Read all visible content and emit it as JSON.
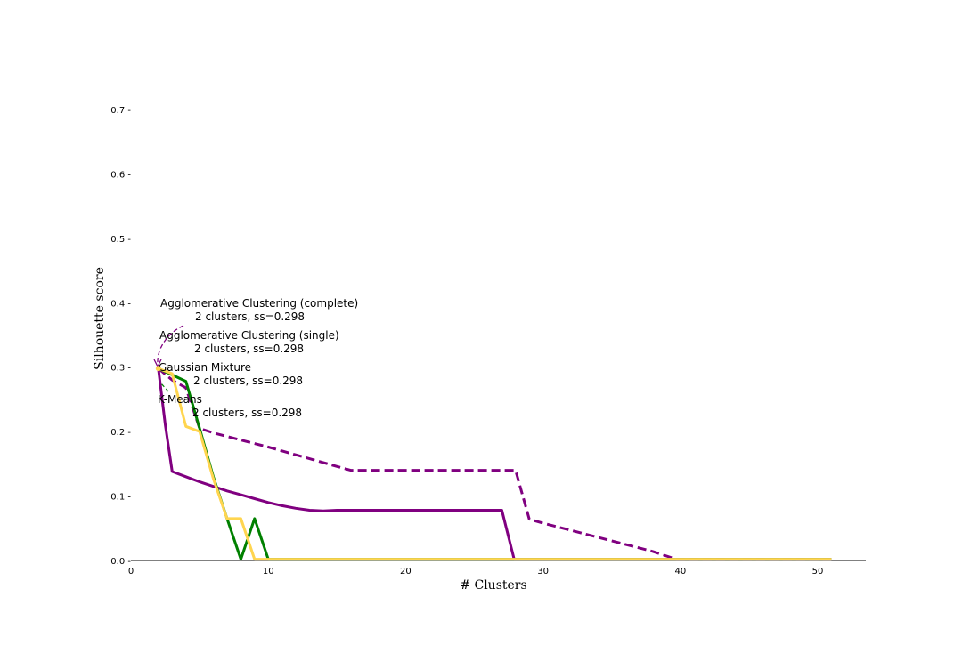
{
  "chart_data": {
    "type": "line",
    "title": "",
    "xlabel": "# Clusters",
    "ylabel": "Silhouette score",
    "xlim": [
      0,
      53.5
    ],
    "ylim": [
      0,
      0.7
    ],
    "x_ticks": [
      0,
      10,
      20,
      30,
      40,
      50
    ],
    "x_tick_labels": [
      "0",
      "10",
      "20",
      "30",
      "40",
      "50"
    ],
    "y_ticks": [
      0.0,
      0.1,
      0.2,
      0.3,
      0.4,
      0.5,
      0.6,
      0.7
    ],
    "y_tick_labels": [
      "0.0 -",
      "0.1 -",
      "0.2 -",
      "0.3 -",
      "0.4 -",
      "0.5 -",
      "0.6 -",
      "0.7 -"
    ],
    "grid": false,
    "series": [
      {
        "color": "#800080",
        "style": "dashed",
        "points": [
          [
            2,
            0.298
          ],
          [
            3,
            0.28
          ],
          [
            4,
            0.268
          ],
          [
            5,
            0.205
          ],
          [
            6,
            0.198
          ],
          [
            8,
            0.187
          ],
          [
            10,
            0.176
          ],
          [
            12,
            0.164
          ],
          [
            14,
            0.152
          ],
          [
            15,
            0.146
          ],
          [
            16,
            0.14
          ],
          [
            20,
            0.14
          ],
          [
            25,
            0.14
          ],
          [
            28,
            0.14
          ],
          [
            29,
            0.064
          ],
          [
            30,
            0.058
          ],
          [
            32,
            0.047
          ],
          [
            34,
            0.036
          ],
          [
            36,
            0.025
          ],
          [
            38,
            0.014
          ],
          [
            39.7,
            0.002
          ],
          [
            40,
            0.002
          ],
          [
            51,
            0.002
          ]
        ]
      },
      {
        "color": "#800080",
        "style": "solid",
        "points": [
          [
            2,
            0.298
          ],
          [
            2.5,
            0.21
          ],
          [
            3,
            0.138
          ],
          [
            4,
            0.13
          ],
          [
            5,
            0.122
          ],
          [
            6,
            0.115
          ],
          [
            7,
            0.108
          ],
          [
            8,
            0.102
          ],
          [
            9,
            0.096
          ],
          [
            10,
            0.09
          ],
          [
            11,
            0.085
          ],
          [
            12,
            0.081
          ],
          [
            13,
            0.078
          ],
          [
            14,
            0.077
          ],
          [
            15,
            0.078
          ],
          [
            20,
            0.078
          ],
          [
            25,
            0.078
          ],
          [
            27,
            0.078
          ],
          [
            27.9,
            0.002
          ],
          [
            30,
            0.002
          ],
          [
            40,
            0.002
          ],
          [
            51,
            0.002
          ]
        ]
      },
      {
        "color": "#008000",
        "style": "solid",
        "points": [
          [
            2,
            0.298
          ],
          [
            3,
            0.288
          ],
          [
            4,
            0.278
          ],
          [
            5,
            0.205
          ],
          [
            6,
            0.13
          ],
          [
            7,
            0.065
          ],
          [
            8,
            0.002
          ],
          [
            9,
            0.065
          ],
          [
            10,
            0.002
          ],
          [
            20,
            0.002
          ],
          [
            30,
            0.002
          ],
          [
            40,
            0.002
          ],
          [
            51,
            0.002
          ]
        ]
      },
      {
        "color": "#FFD54F",
        "style": "solid",
        "points": [
          [
            2,
            0.298
          ],
          [
            3,
            0.29
          ],
          [
            4,
            0.208
          ],
          [
            5,
            0.2
          ],
          [
            6,
            0.127
          ],
          [
            7,
            0.065
          ],
          [
            8,
            0.065
          ],
          [
            9,
            0.002
          ],
          [
            20,
            0.002
          ],
          [
            30,
            0.002
          ],
          [
            40,
            0.002
          ],
          [
            51,
            0.002
          ]
        ]
      }
    ],
    "annotations": [
      {
        "line1": "Agglomerative Clustering (complete)",
        "line2": "2 clusters, ss=0.298",
        "color": "#800080",
        "arrow": "curved",
        "target": [
          2,
          0.298
        ]
      },
      {
        "line1": "Agglomerative Clustering (single)",
        "line2": "2 clusters, ss=0.298",
        "color": "#800080",
        "arrow": "none",
        "target": [
          2,
          0.298
        ]
      },
      {
        "line1": "Gaussian Mixture",
        "line2": "2 clusters, ss=0.298",
        "color": "#FFD54F",
        "arrow": "none",
        "target": [
          2,
          0.298
        ]
      },
      {
        "line1": "K-Means",
        "line2": "2 clusters, ss=0.298",
        "color": "#008000",
        "arrow": "dashed",
        "target": [
          2,
          0.298
        ]
      }
    ]
  }
}
